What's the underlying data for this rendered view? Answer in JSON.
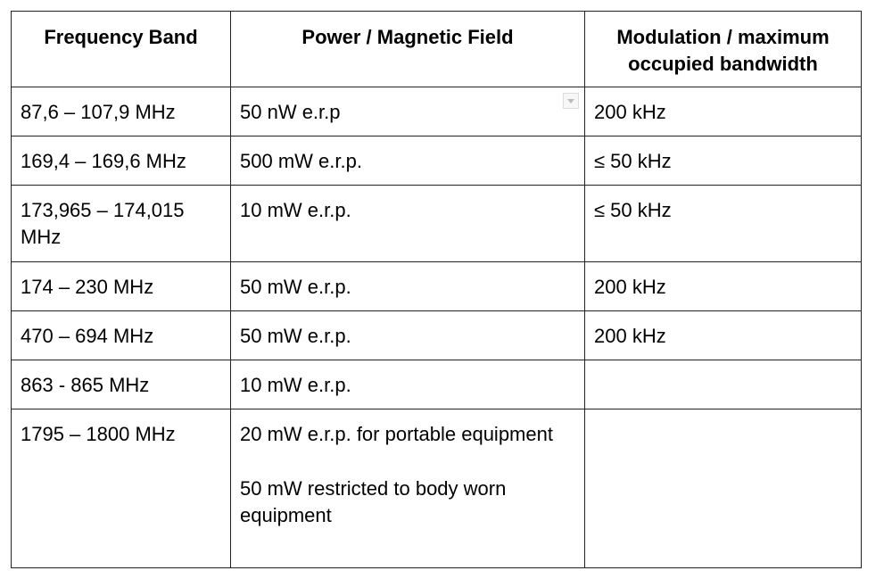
{
  "table": {
    "headers": [
      "Frequency Band",
      "Power / Magnetic Field",
      "Modulation / maximum occupied bandwidth"
    ],
    "rows": [
      [
        "87,6 – 107,9 MHz",
        "50 nW e.r.p",
        "200 kHz"
      ],
      [
        "169,4 – 169,6 MHz",
        "500 mW e.r.p.",
        "≤ 50 kHz"
      ],
      [
        "173,965 – 174,015 MHz",
        "10 mW e.r.p.",
        "≤ 50 kHz"
      ],
      [
        "174 – 230 MHz",
        "50 mW e.r.p.",
        "200 kHz"
      ],
      [
        "470 – 694 MHz",
        "50 mW e.r.p.",
        "200 kHz"
      ],
      [
        "863 - 865 MHz",
        "10 mW e.r.p.",
        null
      ],
      [
        "1795 – 1800 MHz",
        [
          "20 mW e.r.p. for portable equipment",
          "50 mW restricted to body worn equipment"
        ],
        null
      ]
    ]
  }
}
